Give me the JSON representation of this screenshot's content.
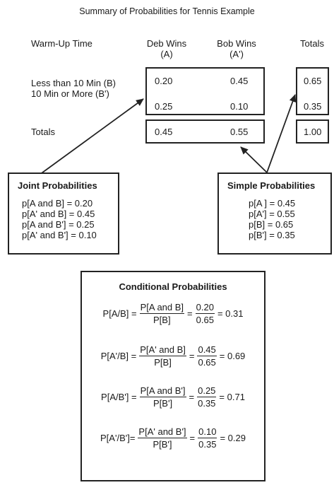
{
  "title": "Summary of Probabilities for Tennis Example",
  "headers": {
    "warmup": "Warm-Up Time",
    "deb_line1": "Deb Wins",
    "deb_line2": "(A)",
    "bob_line1": "Bob Wins",
    "bob_line2": "(A')",
    "totals": "Totals"
  },
  "rows": {
    "less": "Less than 10 Min (B)",
    "more": "10 Min or More (B')",
    "totals": "Totals"
  },
  "values": {
    "aB": "0.20",
    "a2B": "0.45",
    "totB": "0.65",
    "aB2": "0.25",
    "a2B2": "0.10",
    "totB2": "0.35",
    "totA": "0.45",
    "totA2": "0.55",
    "grand": "1.00"
  },
  "joint": {
    "title": "Joint Probabilities",
    "lines": [
      "p[A and B] = 0.20",
      "p[A' and B] = 0.45",
      "p[A and B'] = 0.25",
      "p[A' and B'] = 0.10"
    ]
  },
  "simple": {
    "title": "Simple Probabilities",
    "lines": [
      "p[A ] = 0.45",
      "p[A'] = 0.55",
      "p[B] = 0.65",
      "p[B'] = 0.35"
    ]
  },
  "conditional": {
    "title": "Conditional Probabilities",
    "rows": [
      {
        "lhs": "P[A/B] =",
        "num": "P[A and B]",
        "den": "P[B]",
        "vnum": "0.20",
        "vden": "0.65",
        "result": "= 0.31"
      },
      {
        "lhs": "P[A'/B] =",
        "num": "P[A' and B]",
        "den": "P[B]",
        "vnum": "0.45",
        "vden": "0.65",
        "result": "= 0.69"
      },
      {
        "lhs": "P[A/B'] =",
        "num": "P[A and B']",
        "den": "P[B']",
        "vnum": "0.25",
        "vden": "0.35",
        "result": "= 0.71"
      },
      {
        "lhs": "P[A'/B']=",
        "num": "P[A' and B']",
        "den": "P[B']",
        "vnum": "0.10",
        "vden": "0.35",
        "result": "= 0.29"
      }
    ]
  }
}
